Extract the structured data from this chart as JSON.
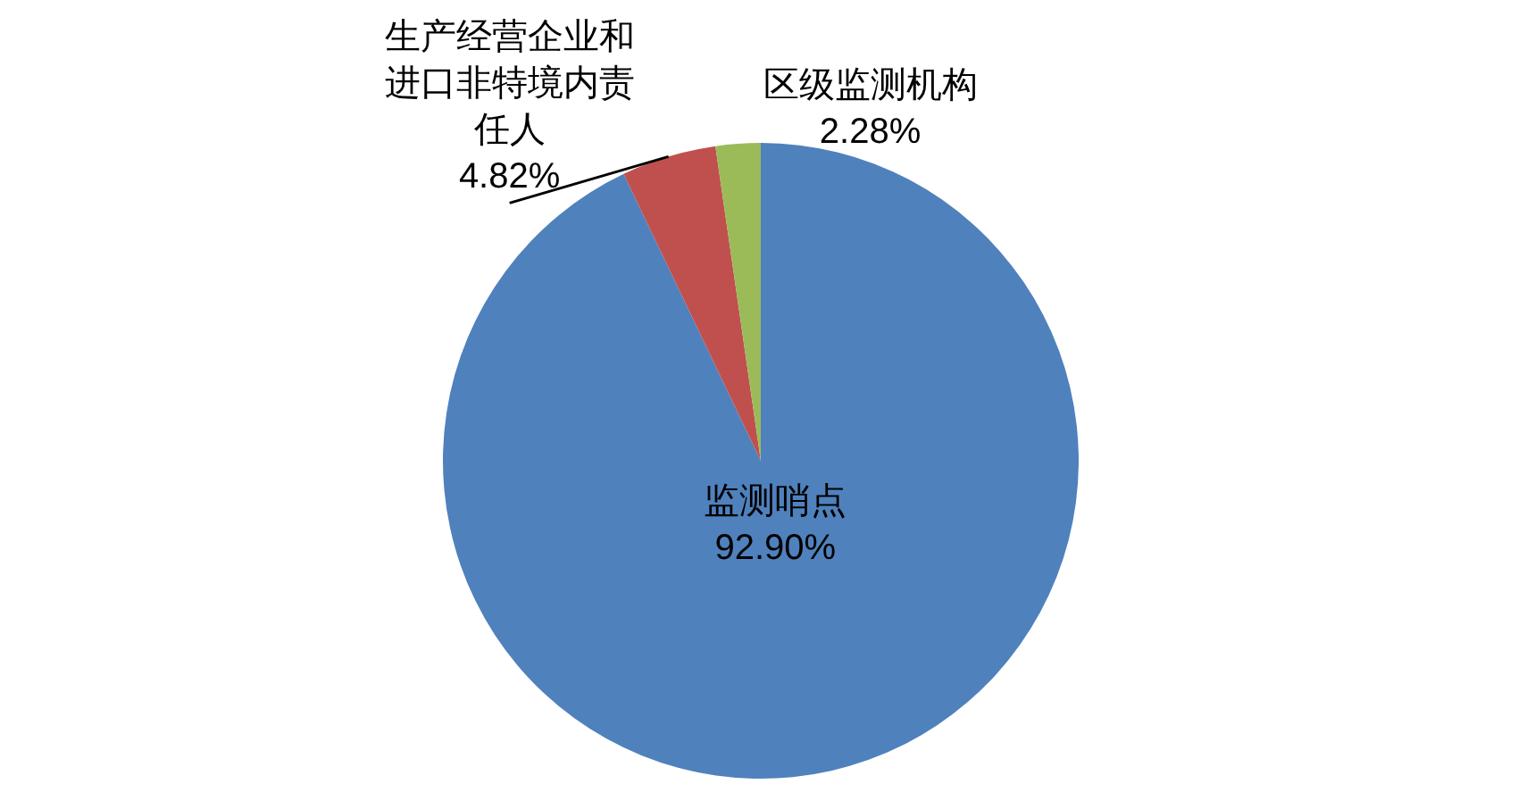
{
  "chart_data": {
    "type": "pie",
    "categories": [
      "监测哨点",
      "生产经营企业和进口非特境内责任人",
      "区级监测机构"
    ],
    "values": [
      92.9,
      4.82,
      2.28
    ],
    "colors": [
      "#4f81bd",
      "#c0504d",
      "#9bbb59"
    ],
    "value_labels": [
      "92.90%",
      "4.82%",
      "2.28%"
    ]
  }
}
